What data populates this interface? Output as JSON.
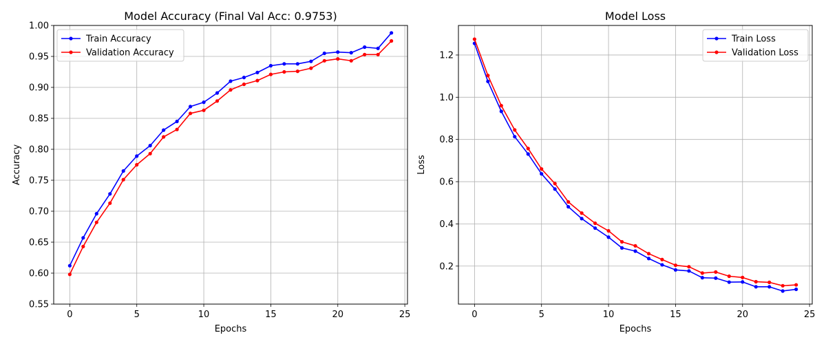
{
  "chart_data": [
    {
      "type": "line",
      "title": "Model Accuracy (Final Val Acc: 0.9753)",
      "xlabel": "Epochs",
      "ylabel": "Accuracy",
      "xlim": [
        -1.2,
        25.2
      ],
      "ylim": [
        0.55,
        1.0
      ],
      "xticks": [
        0,
        5,
        10,
        15,
        20,
        25
      ],
      "yticks": [
        0.55,
        0.6,
        0.65,
        0.7,
        0.75,
        0.8,
        0.85,
        0.9,
        0.95,
        1.0
      ],
      "ytick_labels": [
        "0.55",
        "0.60",
        "0.65",
        "0.70",
        "0.75",
        "0.80",
        "0.85",
        "0.90",
        "0.95",
        "1.00"
      ],
      "grid": true,
      "legend_position": "top-left",
      "x": [
        0,
        1,
        2,
        3,
        4,
        5,
        6,
        7,
        8,
        9,
        10,
        11,
        12,
        13,
        14,
        15,
        16,
        17,
        18,
        19,
        20,
        21,
        22,
        23,
        24
      ],
      "series": [
        {
          "name": "Train Accuracy",
          "color": "#0000ff",
          "values": [
            0.612,
            0.657,
            0.696,
            0.728,
            0.765,
            0.789,
            0.806,
            0.831,
            0.845,
            0.869,
            0.876,
            0.891,
            0.91,
            0.916,
            0.924,
            0.935,
            0.938,
            0.938,
            0.942,
            0.955,
            0.957,
            0.956,
            0.965,
            0.963,
            0.988
          ]
        },
        {
          "name": "Validation Accuracy",
          "color": "#ff0000",
          "values": [
            0.598,
            0.643,
            0.682,
            0.713,
            0.751,
            0.775,
            0.793,
            0.82,
            0.832,
            0.858,
            0.863,
            0.878,
            0.896,
            0.905,
            0.911,
            0.921,
            0.925,
            0.926,
            0.931,
            0.943,
            0.946,
            0.943,
            0.953,
            0.953,
            0.975
          ]
        }
      ]
    },
    {
      "type": "line",
      "title": "Model Loss",
      "xlabel": "Epochs",
      "ylabel": "Loss",
      "xlim": [
        -1.2,
        25.2
      ],
      "ylim": [
        0.02,
        1.34
      ],
      "xticks": [
        0,
        5,
        10,
        15,
        20,
        25
      ],
      "yticks": [
        0.2,
        0.4,
        0.6,
        0.8,
        1.0,
        1.2
      ],
      "ytick_labels": [
        "0.2",
        "0.4",
        "0.6",
        "0.8",
        "1.0",
        "1.2"
      ],
      "grid": true,
      "legend_position": "top-right",
      "x": [
        0,
        1,
        2,
        3,
        4,
        5,
        6,
        7,
        8,
        9,
        10,
        11,
        12,
        13,
        14,
        15,
        16,
        17,
        18,
        19,
        20,
        21,
        22,
        23,
        24
      ],
      "series": [
        {
          "name": "Train Loss",
          "color": "#0000ff",
          "values": [
            1.255,
            1.075,
            0.933,
            0.813,
            0.731,
            0.637,
            0.565,
            0.481,
            0.425,
            0.38,
            0.337,
            0.286,
            0.271,
            0.236,
            0.206,
            0.182,
            0.177,
            0.145,
            0.143,
            0.124,
            0.125,
            0.102,
            0.102,
            0.082,
            0.09
          ]
        },
        {
          "name": "Validation Loss",
          "color": "#ff0000",
          "values": [
            1.275,
            1.103,
            0.96,
            0.845,
            0.757,
            0.66,
            0.591,
            0.504,
            0.451,
            0.403,
            0.367,
            0.315,
            0.296,
            0.259,
            0.231,
            0.204,
            0.197,
            0.167,
            0.172,
            0.152,
            0.146,
            0.126,
            0.123,
            0.107,
            0.111
          ]
        }
      ]
    }
  ]
}
